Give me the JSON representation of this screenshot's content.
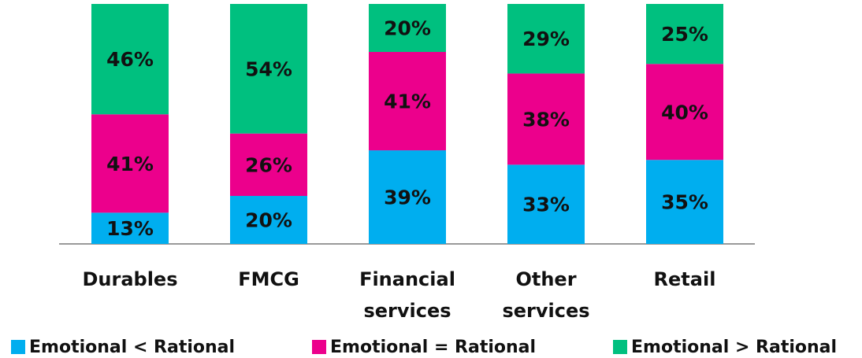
{
  "chart_data": {
    "type": "stacked_bar",
    "categories": [
      "Durables",
      "FMCG",
      "Financial services",
      "Other services",
      "Retail"
    ],
    "series": [
      {
        "name": "Emotional < Rational",
        "color": "#00aeef",
        "values": [
          13,
          20,
          39,
          33,
          35
        ],
        "value_labels": [
          "13%",
          "20%",
          "39%",
          "33%",
          "35%"
        ]
      },
      {
        "name": "Emotional = Rational",
        "color": "#ec008c",
        "values": [
          41,
          26,
          41,
          38,
          40
        ],
        "value_labels": [
          "41%",
          "26%",
          "41%",
          "38%",
          "40%"
        ]
      },
      {
        "name": "Emotional > Rational",
        "color": "#00c07f",
        "values": [
          46,
          54,
          20,
          29,
          25
        ],
        "value_labels": [
          "46%",
          "54%",
          "20%",
          "29%",
          "25%"
        ]
      }
    ]
  }
}
